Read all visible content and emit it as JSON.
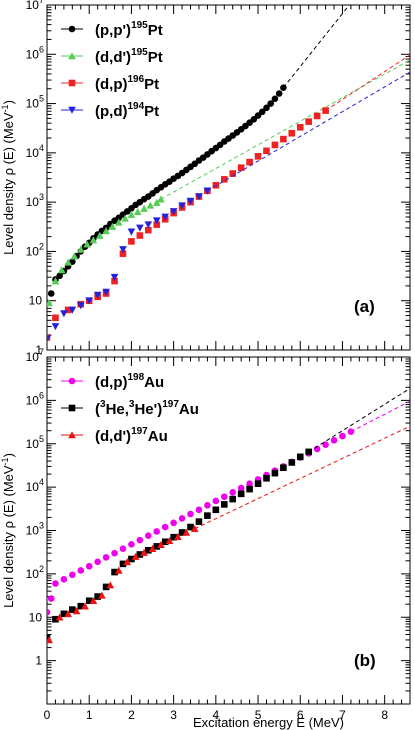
{
  "chart_data": [
    {
      "type": "scatter",
      "panel_label": "(a)",
      "xlabel": "",
      "ylabel": "Level density ρ (E) (MeV",
      "ylabel_sup": "-1",
      "ylabel_end": ")",
      "xlim": [
        0,
        8.6
      ],
      "ylim": [
        1,
        10000000
      ],
      "yscale": "log",
      "y_ticks": [
        1,
        10,
        100,
        1000,
        10000,
        100000,
        1000000,
        10000000
      ],
      "y_tick_labels": [
        {
          "base": "1",
          "exp": ""
        },
        {
          "base": "10",
          "exp": ""
        },
        {
          "base": "10",
          "exp": "2"
        },
        {
          "base": "10",
          "exp": "3"
        },
        {
          "base": "10",
          "exp": "4"
        },
        {
          "base": "10",
          "exp": "5"
        },
        {
          "base": "10",
          "exp": "6"
        },
        {
          "base": "10",
          "exp": "7"
        }
      ],
      "legend_position": "top-left",
      "series": [
        {
          "name": {
            "pre": "(p,p')",
            "sup": "195",
            "post": "Pt"
          },
          "color": "#000000",
          "marker": "circle",
          "points": [
            [
              0.1,
              14
            ],
            [
              0.2,
              27
            ],
            [
              0.3,
              32
            ],
            [
              0.4,
              40
            ],
            [
              0.5,
              50
            ],
            [
              0.6,
              62
            ],
            [
              0.7,
              80
            ],
            [
              0.8,
              100
            ],
            [
              0.9,
              125
            ],
            [
              1.0,
              150
            ],
            [
              1.1,
              185
            ],
            [
              1.2,
              220
            ],
            [
              1.3,
              260
            ],
            [
              1.4,
              300
            ],
            [
              1.5,
              360
            ],
            [
              1.6,
              420
            ],
            [
              1.7,
              480
            ],
            [
              1.8,
              560
            ],
            [
              1.9,
              650
            ],
            [
              2.0,
              750
            ],
            [
              2.1,
              880
            ],
            [
              2.2,
              1000
            ],
            [
              2.3,
              1150
            ],
            [
              2.4,
              1300
            ],
            [
              2.5,
              1500
            ],
            [
              2.6,
              1750
            ],
            [
              2.7,
              2000
            ],
            [
              2.8,
              2300
            ],
            [
              2.9,
              2600
            ],
            [
              3.0,
              3000
            ],
            [
              3.1,
              3400
            ],
            [
              3.2,
              3900
            ],
            [
              3.3,
              4500
            ],
            [
              3.4,
              5200
            ],
            [
              3.5,
              6000
            ],
            [
              3.6,
              7000
            ],
            [
              3.7,
              8000
            ],
            [
              3.8,
              9300
            ],
            [
              3.9,
              10800
            ],
            [
              4.0,
              12500
            ],
            [
              4.1,
              14500
            ],
            [
              4.2,
              17000
            ],
            [
              4.3,
              19500
            ],
            [
              4.4,
              22500
            ],
            [
              4.5,
              26000
            ],
            [
              4.6,
              30000
            ],
            [
              4.7,
              35000
            ],
            [
              4.8,
              41000
            ],
            [
              4.9,
              48000
            ],
            [
              5.0,
              57000
            ],
            [
              5.1,
              68000
            ],
            [
              5.2,
              82000
            ],
            [
              5.3,
              100000
            ],
            [
              5.4,
              125000
            ],
            [
              5.5,
              160000
            ],
            [
              5.6,
              210000
            ]
          ]
        },
        {
          "name": {
            "pre": "(d,d')",
            "sup": "195",
            "post": "Pt"
          },
          "color": "#55cc55",
          "marker": "triangle-up",
          "points": [
            [
              0.05,
              9
            ],
            [
              0.2,
              25
            ],
            [
              0.35,
              42
            ],
            [
              0.5,
              60
            ],
            [
              0.65,
              80
            ],
            [
              0.8,
              110
            ],
            [
              0.95,
              140
            ],
            [
              1.1,
              170
            ],
            [
              1.25,
              210
            ],
            [
              1.4,
              260
            ],
            [
              1.55,
              320
            ],
            [
              1.7,
              390
            ],
            [
              1.85,
              470
            ],
            [
              2.0,
              560
            ],
            [
              2.15,
              640
            ],
            [
              2.3,
              740
            ],
            [
              2.45,
              860
            ],
            [
              2.6,
              980
            ],
            [
              2.7,
              1150
            ]
          ]
        },
        {
          "name": {
            "pre": "(d,p)",
            "sup": "196",
            "post": "Pt"
          },
          "color": "#ee2222",
          "marker": "square",
          "points": [
            [
              0.0,
              1.8
            ],
            [
              0.2,
              4.5
            ],
            [
              0.5,
              6.5
            ],
            [
              0.8,
              8.5
            ],
            [
              1.0,
              10
            ],
            [
              1.2,
              12
            ],
            [
              1.4,
              14
            ],
            [
              1.6,
              25
            ],
            [
              1.8,
              90
            ],
            [
              2.0,
              160
            ],
            [
              2.2,
              210
            ],
            [
              2.4,
              270
            ],
            [
              2.6,
              350
            ],
            [
              2.8,
              450
            ],
            [
              3.0,
              600
            ],
            [
              3.2,
              780
            ],
            [
              3.4,
              1000
            ],
            [
              3.6,
              1300
            ],
            [
              3.8,
              1700
            ],
            [
              4.0,
              2200
            ],
            [
              4.2,
              2900
            ],
            [
              4.4,
              3800
            ],
            [
              4.6,
              5000
            ],
            [
              4.8,
              6500
            ],
            [
              5.0,
              8500
            ],
            [
              5.2,
              11000
            ],
            [
              5.4,
              14500
            ],
            [
              5.6,
              19000
            ],
            [
              5.8,
              25000
            ],
            [
              6.0,
              33000
            ],
            [
              6.2,
              43000
            ],
            [
              6.4,
              56000
            ],
            [
              6.6,
              72000
            ]
          ]
        },
        {
          "name": {
            "pre": "(p,d)",
            "sup": "194",
            "post": "Pt"
          },
          "color": "#2222dd",
          "marker": "triangle-down",
          "points": [
            [
              0.0,
              1.7
            ],
            [
              0.2,
              3
            ],
            [
              0.4,
              5.5
            ],
            [
              0.6,
              6.5
            ],
            [
              0.8,
              8
            ],
            [
              1.0,
              10
            ],
            [
              1.2,
              13
            ],
            [
              1.4,
              15
            ],
            [
              1.6,
              30
            ],
            [
              1.8,
              110
            ],
            [
              2.0,
              250
            ],
            [
              2.2,
              300
            ],
            [
              2.4,
              350
            ],
            [
              2.6,
              420
            ],
            [
              2.8,
              500
            ],
            [
              3.0,
              650
            ],
            [
              3.2,
              850
            ],
            [
              3.4,
              1050
            ],
            [
              3.6,
              1300
            ],
            [
              3.8,
              1700
            ]
          ]
        }
      ]
    },
    {
      "type": "scatter",
      "panel_label": "(b)",
      "xlabel": "Excitation energy E (MeV)",
      "ylabel": "Level density ρ (E) (MeV",
      "ylabel_sup": "-1",
      "ylabel_end": ")",
      "xlim": [
        0,
        8.6
      ],
      "ylim": [
        0.1,
        10000000
      ],
      "yscale": "log",
      "x_ticks": [
        0,
        1,
        2,
        3,
        4,
        5,
        6,
        7,
        8
      ],
      "x_tick_labels": [
        "0",
        "1",
        "2",
        "3",
        "4",
        "5",
        "6",
        "7",
        "8"
      ],
      "y_ticks": [
        1,
        10,
        100,
        1000,
        10000,
        100000,
        1000000,
        10000000
      ],
      "y_tick_labels": [
        {
          "base": "1",
          "exp": ""
        },
        {
          "base": "10",
          "exp": ""
        },
        {
          "base": "10",
          "exp": "2"
        },
        {
          "base": "10",
          "exp": "3"
        },
        {
          "base": "10",
          "exp": "4"
        },
        {
          "base": "10",
          "exp": "5"
        },
        {
          "base": "10",
          "exp": "6"
        },
        {
          "base": "10",
          "exp": "7"
        }
      ],
      "legend_position": "top-left",
      "series": [
        {
          "name": {
            "pre": "(d,p)",
            "sup": "198",
            "post": "Au"
          },
          "color": "#ee00ee",
          "marker": "circle",
          "points": [
            [
              0.0,
              13
            ],
            [
              0.1,
              27
            ],
            [
              0.2,
              60
            ],
            [
              0.4,
              75
            ],
            [
              0.6,
              95
            ],
            [
              0.8,
              120
            ],
            [
              1.0,
              150
            ],
            [
              1.2,
              190
            ],
            [
              1.4,
              240
            ],
            [
              1.6,
              300
            ],
            [
              1.8,
              380
            ],
            [
              2.0,
              480
            ],
            [
              2.2,
              600
            ],
            [
              2.4,
              760
            ],
            [
              2.6,
              950
            ],
            [
              2.8,
              1200
            ],
            [
              3.0,
              1500
            ],
            [
              3.2,
              1900
            ],
            [
              3.4,
              2400
            ],
            [
              3.6,
              3000
            ],
            [
              3.8,
              3800
            ],
            [
              4.0,
              4800
            ],
            [
              4.2,
              6000
            ],
            [
              4.4,
              7600
            ],
            [
              4.6,
              9500
            ],
            [
              4.8,
              12000
            ],
            [
              5.0,
              15000
            ],
            [
              5.2,
              19000
            ],
            [
              5.4,
              24000
            ],
            [
              5.6,
              30000
            ],
            [
              5.8,
              38000
            ],
            [
              6.0,
              48000
            ],
            [
              6.2,
              60000
            ],
            [
              6.4,
              76000
            ],
            [
              6.6,
              95000
            ],
            [
              6.8,
              120000
            ],
            [
              7.0,
              150000
            ],
            [
              7.2,
              190000
            ]
          ]
        },
        {
          "name": {
            "pre": "(",
            "sup": "3",
            "post": "He,",
            "sup2": "3",
            "post2": "He')",
            "sup3": "197",
            "post3": "Au"
          },
          "color": "#000000",
          "marker": "square",
          "points": [
            [
              0.0,
              3.3
            ],
            [
              0.2,
              9
            ],
            [
              0.4,
              12
            ],
            [
              0.6,
              15
            ],
            [
              0.8,
              18
            ],
            [
              1.0,
              24
            ],
            [
              1.2,
              30
            ],
            [
              1.4,
              50
            ],
            [
              1.6,
              110
            ],
            [
              1.8,
              170
            ],
            [
              2.0,
              220
            ],
            [
              2.2,
              280
            ],
            [
              2.4,
              350
            ],
            [
              2.6,
              430
            ],
            [
              2.8,
              550
            ],
            [
              3.0,
              700
            ],
            [
              3.2,
              900
            ],
            [
              3.4,
              1200
            ],
            [
              3.6,
              1600
            ],
            [
              3.8,
              2200
            ],
            [
              4.0,
              3000
            ],
            [
              4.2,
              4000
            ],
            [
              4.4,
              5300
            ],
            [
              4.6,
              7000
            ],
            [
              4.8,
              9000
            ],
            [
              5.0,
              12000
            ],
            [
              5.2,
              16000
            ],
            [
              5.4,
              21000
            ],
            [
              5.6,
              28000
            ],
            [
              5.8,
              37000
            ],
            [
              6.0,
              50000
            ],
            [
              6.2,
              65000
            ]
          ]
        },
        {
          "name": {
            "pre": "(d,d')",
            "sup": "197",
            "post": "Au"
          },
          "color": "#ee1111",
          "marker": "triangle-up",
          "points": [
            [
              0.05,
              3
            ],
            [
              0.3,
              10
            ],
            [
              0.5,
              12
            ],
            [
              0.7,
              14
            ],
            [
              0.9,
              18
            ],
            [
              1.1,
              24
            ],
            [
              1.3,
              32
            ],
            [
              1.5,
              55
            ],
            [
              1.7,
              120
            ],
            [
              1.9,
              190
            ],
            [
              2.1,
              250
            ],
            [
              2.3,
              310
            ],
            [
              2.5,
              380
            ],
            [
              2.7,
              470
            ],
            [
              2.9,
              580
            ],
            [
              3.1,
              720
            ],
            [
              3.3,
              900
            ],
            [
              3.5,
              1100
            ]
          ]
        }
      ]
    }
  ]
}
